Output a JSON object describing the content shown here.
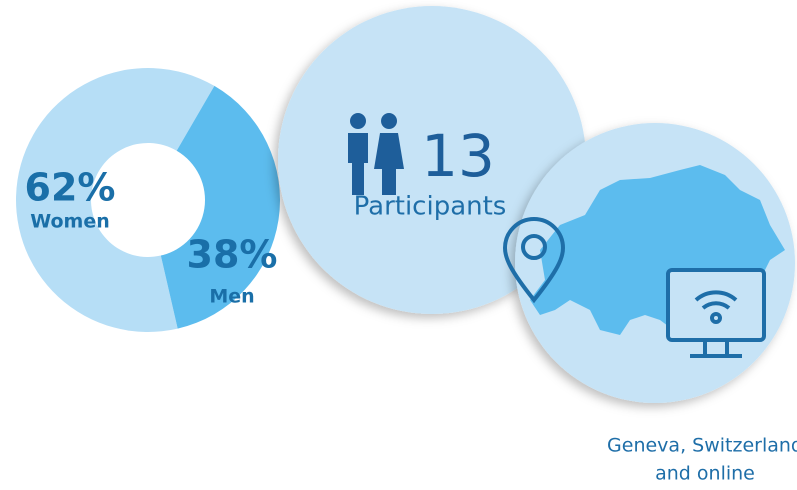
{
  "chart_data": {
    "type": "pie",
    "categories": [
      "Women",
      "Men"
    ],
    "values": [
      62,
      38
    ],
    "value_labels": [
      "62%",
      "38%"
    ],
    "colors": [
      "#b6def6",
      "#5cbcee"
    ]
  },
  "participants": {
    "count": 13,
    "label": "Participants"
  },
  "location": {
    "lines": [
      "Geneva, Switzerland",
      "and online"
    ]
  }
}
